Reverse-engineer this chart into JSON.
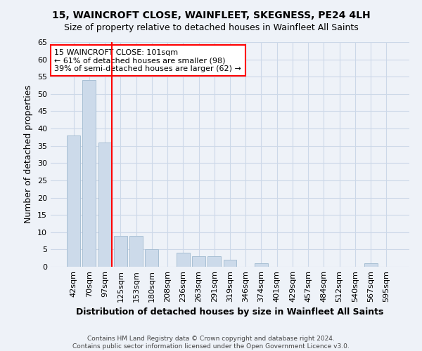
{
  "title1": "15, WAINCROFT CLOSE, WAINFLEET, SKEGNESS, PE24 4LH",
  "title2": "Size of property relative to detached houses in Wainfleet All Saints",
  "xlabel": "Distribution of detached houses by size in Wainfleet All Saints",
  "ylabel": "Number of detached properties",
  "footer1": "Contains HM Land Registry data © Crown copyright and database right 2024.",
  "footer2": "Contains public sector information licensed under the Open Government Licence v3.0.",
  "categories": [
    "42sqm",
    "70sqm",
    "97sqm",
    "125sqm",
    "153sqm",
    "180sqm",
    "208sqm",
    "236sqm",
    "263sqm",
    "291sqm",
    "319sqm",
    "346sqm",
    "374sqm",
    "401sqm",
    "429sqm",
    "457sqm",
    "484sqm",
    "512sqm",
    "540sqm",
    "567sqm",
    "595sqm"
  ],
  "values": [
    38,
    54,
    36,
    9,
    9,
    5,
    0,
    4,
    3,
    3,
    2,
    0,
    1,
    0,
    0,
    0,
    0,
    0,
    0,
    1,
    0
  ],
  "bar_color": "#ccdaea",
  "bar_edge_color": "#a8bfd4",
  "annotation_box_text": "15 WAINCROFT CLOSE: 101sqm\n← 61% of detached houses are smaller (98)\n39% of semi-detached houses are larger (62) →",
  "annotation_box_color": "white",
  "annotation_box_edge_color": "red",
  "vline_color": "red",
  "vline_x": 2.425,
  "ylim": [
    0,
    65
  ],
  "yticks": [
    0,
    5,
    10,
    15,
    20,
    25,
    30,
    35,
    40,
    45,
    50,
    55,
    60,
    65
  ],
  "grid_color": "#ccd8e8",
  "bg_color": "#eef2f8",
  "title1_fontsize": 10,
  "title2_fontsize": 9,
  "ylabel_fontsize": 9,
  "xlabel_fontsize": 9,
  "tick_fontsize": 8,
  "annot_fontsize": 8,
  "footer_fontsize": 6.5
}
